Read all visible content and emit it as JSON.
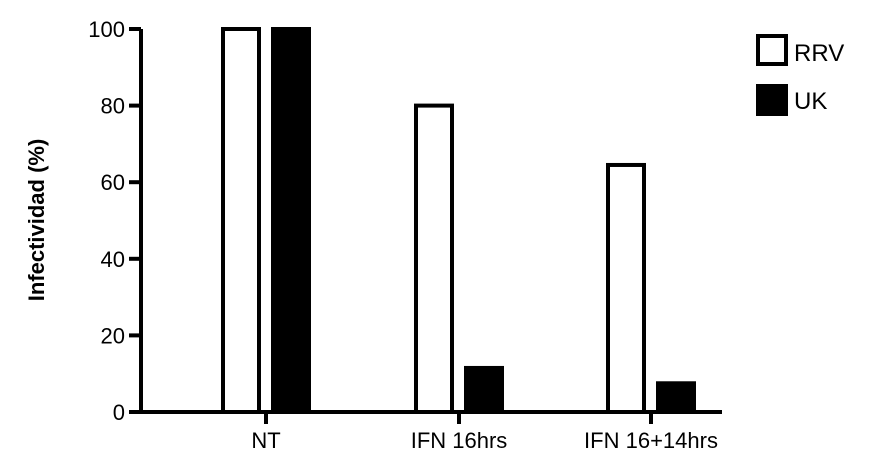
{
  "chart_data": {
    "type": "bar",
    "categories": [
      "NT",
      "IFN 16hrs",
      "IFN 16+14hrs"
    ],
    "series": [
      {
        "name": "RRV",
        "values": [
          100,
          80,
          64.5
        ],
        "fill": "#ffffff",
        "stroke": "#000000"
      },
      {
        "name": "UK",
        "values": [
          100,
          11.5,
          7.5
        ],
        "fill": "#000000",
        "stroke": "#000000"
      }
    ],
    "title": "",
    "xlabel": "",
    "ylabel": "Infectividad (%)",
    "ylim": [
      0,
      100
    ],
    "yticks": [
      0,
      20,
      40,
      60,
      80,
      100
    ],
    "grid": false,
    "legend": "top-right"
  }
}
